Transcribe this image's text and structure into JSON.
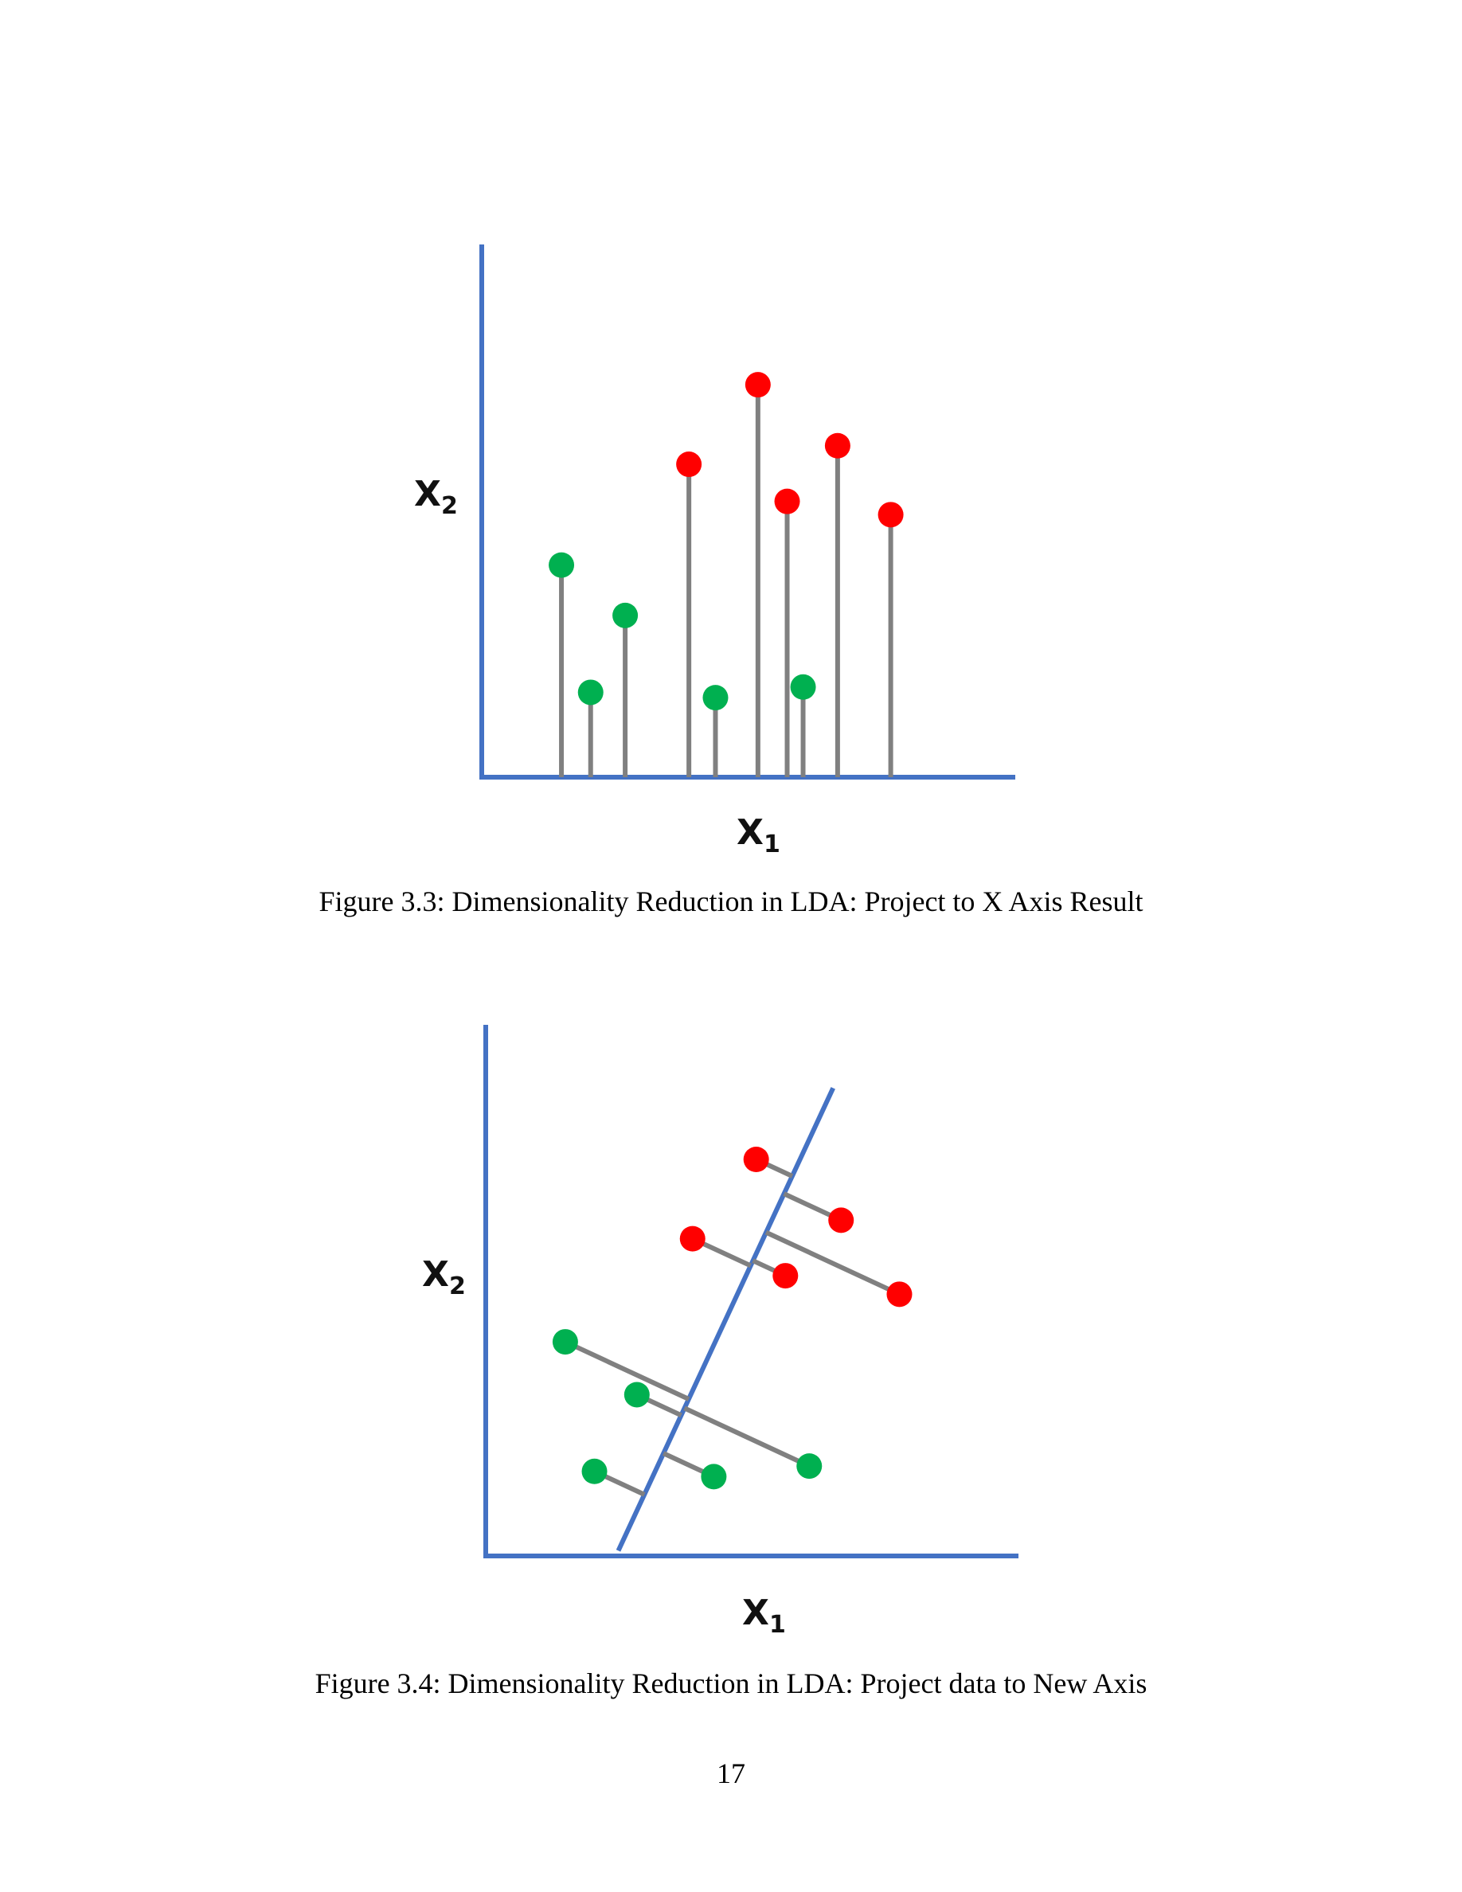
{
  "figures": [
    {
      "caption": "Figure 3.3: Dimensionality Reduction in LDA: Project to X Axis Result",
      "x_label": "X",
      "x_label_sub": "1",
      "y_label": "X",
      "y_label_sub": "2"
    },
    {
      "caption": "Figure 3.4: Dimensionality Reduction in LDA: Project data to New Axis",
      "x_label": "X",
      "x_label_sub": "1",
      "y_label": "X",
      "y_label_sub": "2"
    }
  ],
  "page_number": "17",
  "colors": {
    "axis": "#4472C4",
    "projection_line": "#808080",
    "class_a": "#00B050",
    "class_b": "#FF0000"
  },
  "chart_data": [
    {
      "type": "scatter",
      "title": "",
      "xlabel": "X1",
      "ylabel": "X2",
      "xlim": [
        0,
        10
      ],
      "ylim": [
        0,
        10
      ],
      "projection": "onto x-axis",
      "series": [
        {
          "color": "#00B050",
          "points": [
            [
              1.5,
              4.0
            ],
            [
              2.05,
              1.6
            ],
            [
              2.7,
              3.05
            ],
            [
              4.4,
              1.5
            ],
            [
              6.05,
              1.7
            ]
          ]
        },
        {
          "color": "#FF0000",
          "points": [
            [
              3.9,
              5.9
            ],
            [
              5.2,
              7.4
            ],
            [
              5.75,
              5.2
            ],
            [
              6.7,
              6.25
            ],
            [
              7.7,
              4.95
            ]
          ]
        }
      ]
    },
    {
      "type": "scatter",
      "title": "",
      "xlabel": "X1",
      "ylabel": "X2",
      "xlim": [
        0,
        10
      ],
      "ylim": [
        0,
        10
      ],
      "projection": "onto new axis",
      "new_axis": [
        [
          2.5,
          0.1
        ],
        [
          6.55,
          8.85
        ]
      ],
      "series": [
        {
          "color": "#00B050",
          "points": [
            [
              1.5,
              4.05
            ],
            [
              2.85,
              3.05
            ],
            [
              2.05,
              1.6
            ],
            [
              4.3,
              1.5
            ],
            [
              6.1,
              1.7
            ]
          ]
        },
        {
          "color": "#FF0000",
          "points": [
            [
              5.1,
              7.5
            ],
            [
              3.9,
              6.0
            ],
            [
              5.65,
              5.3
            ],
            [
              6.7,
              6.35
            ],
            [
              7.8,
              4.95
            ]
          ]
        }
      ]
    }
  ]
}
